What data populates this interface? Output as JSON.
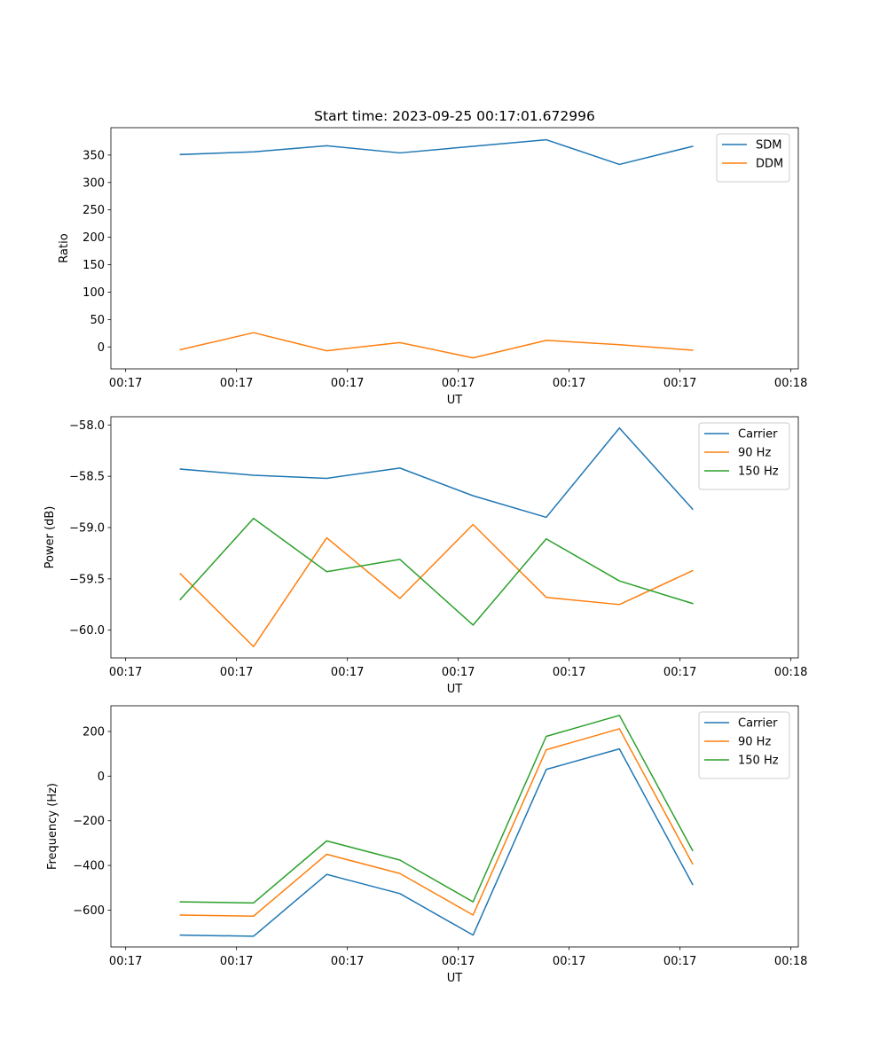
{
  "figure_title": "Start time: 2023-09-25 00:17:01.672996",
  "colors": {
    "c0": "#1f77b4",
    "c1": "#ff7f0e",
    "c2": "#2ca02c"
  },
  "chart_data": [
    {
      "type": "line",
      "title": "Start time: 2023-09-25 00:17:01.672996",
      "xlabel": "UT",
      "ylabel": "Ratio",
      "xlim": [
        -0.2,
        9.1
      ],
      "x_tick_positions": [
        0,
        1.5,
        3,
        4.5,
        6,
        7.5,
        9
      ],
      "x_tick_labels": [
        "00:17",
        "00:17",
        "00:17",
        "00:17",
        "00:17",
        "00:17",
        "00:18"
      ],
      "ylim": [
        -40,
        400
      ],
      "y_ticks": [
        0,
        50,
        100,
        150,
        200,
        250,
        300,
        350
      ],
      "y_tick_labels": [
        "0",
        "50",
        "100",
        "150",
        "200",
        "250",
        "300",
        "350"
      ],
      "x": [
        0.74,
        1.73,
        2.72,
        3.71,
        4.7,
        5.69,
        6.68,
        7.67
      ],
      "series": [
        {
          "name": "SDM",
          "color": "#1f77b4",
          "values": [
            351,
            356,
            367,
            354,
            366,
            378,
            333,
            366
          ]
        },
        {
          "name": "DDM",
          "color": "#ff7f0e",
          "values": [
            -5,
            26,
            -7,
            8,
            -20,
            12,
            4,
            -6
          ]
        }
      ],
      "legend": [
        "SDM",
        "DDM"
      ],
      "legend_loc": "upper right"
    },
    {
      "type": "line",
      "title": "",
      "xlabel": "UT",
      "ylabel": "Power (dB)",
      "xlim": [
        -0.2,
        9.1
      ],
      "x_tick_positions": [
        0,
        1.5,
        3,
        4.5,
        6,
        7.5,
        9
      ],
      "x_tick_labels": [
        "00:17",
        "00:17",
        "00:17",
        "00:17",
        "00:17",
        "00:17",
        "00:18"
      ],
      "ylim": [
        -60.27,
        -57.92
      ],
      "y_ticks": [
        -60.0,
        -59.5,
        -59.0,
        -58.5,
        -58.0
      ],
      "y_tick_labels": [
        "−60.0",
        "−59.5",
        "−59.0",
        "−58.5",
        "−58.0"
      ],
      "x": [
        0.74,
        1.73,
        2.72,
        3.71,
        4.7,
        5.69,
        6.68,
        7.67
      ],
      "series": [
        {
          "name": "Carrier",
          "color": "#1f77b4",
          "values": [
            -58.43,
            -58.49,
            -58.52,
            -58.42,
            -58.69,
            -58.9,
            -58.03,
            -58.82
          ]
        },
        {
          "name": "90 Hz",
          "color": "#ff7f0e",
          "values": [
            -59.45,
            -60.16,
            -59.1,
            -59.69,
            -58.97,
            -59.68,
            -59.75,
            -59.42
          ]
        },
        {
          "name": "150 Hz",
          "color": "#2ca02c",
          "values": [
            -59.7,
            -58.91,
            -59.43,
            -59.31,
            -59.95,
            -59.11,
            -59.52,
            -59.74
          ]
        }
      ],
      "legend": [
        "Carrier",
        "90 Hz",
        "150 Hz"
      ],
      "legend_loc": "upper right"
    },
    {
      "type": "line",
      "title": "",
      "xlabel": "UT",
      "ylabel": "Frequency (Hz)",
      "xlim": [
        -0.2,
        9.1
      ],
      "x_tick_positions": [
        0,
        1.5,
        3,
        4.5,
        6,
        7.5,
        9
      ],
      "x_tick_labels": [
        "00:17",
        "00:17",
        "00:17",
        "00:17",
        "00:17",
        "00:17",
        "00:18"
      ],
      "ylim": [
        -765,
        315
      ],
      "y_ticks": [
        -600,
        -400,
        -200,
        0,
        200
      ],
      "y_tick_labels": [
        "−600",
        "−400",
        "−200",
        "0",
        "200"
      ],
      "x": [
        0.74,
        1.73,
        2.72,
        3.71,
        4.7,
        5.69,
        6.68,
        7.67
      ],
      "series": [
        {
          "name": "Carrier",
          "color": "#1f77b4",
          "values": [
            -712,
            -717,
            -440,
            -526,
            -712,
            30,
            122,
            -485
          ]
        },
        {
          "name": "90 Hz",
          "color": "#ff7f0e",
          "values": [
            -622,
            -627,
            -350,
            -436,
            -622,
            118,
            212,
            -393
          ]
        },
        {
          "name": "150 Hz",
          "color": "#2ca02c",
          "values": [
            -563,
            -568,
            -290,
            -376,
            -563,
            178,
            272,
            -333
          ]
        }
      ],
      "legend": [
        "Carrier",
        "90 Hz",
        "150 Hz"
      ],
      "legend_loc": "upper right"
    }
  ]
}
